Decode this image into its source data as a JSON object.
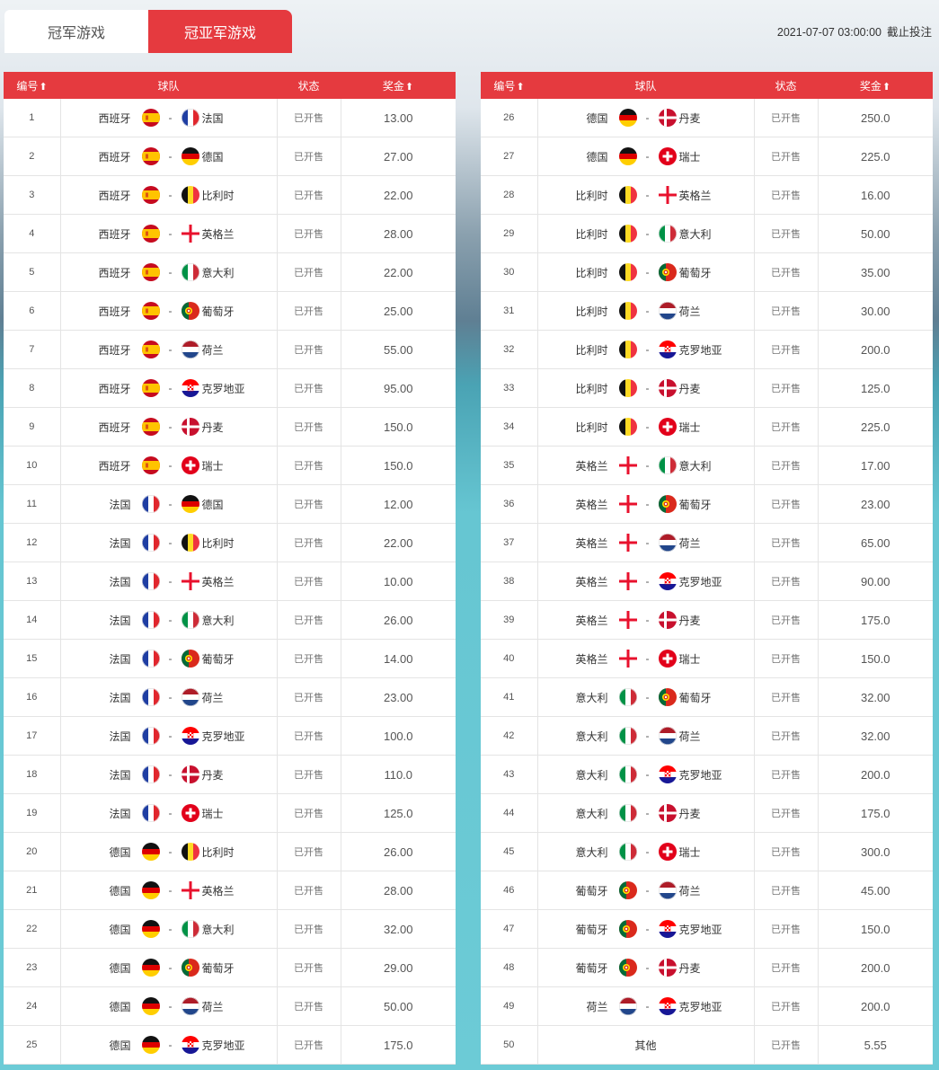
{
  "tabs": [
    {
      "label": "冠军游戏",
      "active": false
    },
    {
      "label": "冠亚军游戏",
      "active": true
    }
  ],
  "deadline": {
    "datetime": "2021-07-07 03:00:00",
    "label": "截止投注"
  },
  "columns": {
    "number": "编号",
    "teams": "球队",
    "status": "状态",
    "prize": "奖金",
    "sort_icon": "⬆"
  },
  "colors": {
    "accent": "#e53a3f",
    "header_text": "#ffffff"
  },
  "rows": [
    {
      "no": "1",
      "team1": "西班牙",
      "flag1": "spain",
      "team2": "法国",
      "flag2": "france",
      "status": "已开售",
      "prize": "13.00"
    },
    {
      "no": "2",
      "team1": "西班牙",
      "flag1": "spain",
      "team2": "德国",
      "flag2": "germany",
      "status": "已开售",
      "prize": "27.00"
    },
    {
      "no": "3",
      "team1": "西班牙",
      "flag1": "spain",
      "team2": "比利时",
      "flag2": "belgium",
      "status": "已开售",
      "prize": "22.00"
    },
    {
      "no": "4",
      "team1": "西班牙",
      "flag1": "spain",
      "team2": "英格兰",
      "flag2": "england",
      "status": "已开售",
      "prize": "28.00"
    },
    {
      "no": "5",
      "team1": "西班牙",
      "flag1": "spain",
      "team2": "意大利",
      "flag2": "italy",
      "status": "已开售",
      "prize": "22.00"
    },
    {
      "no": "6",
      "team1": "西班牙",
      "flag1": "spain",
      "team2": "葡萄牙",
      "flag2": "portugal",
      "status": "已开售",
      "prize": "25.00"
    },
    {
      "no": "7",
      "team1": "西班牙",
      "flag1": "spain",
      "team2": "荷兰",
      "flag2": "netherlands",
      "status": "已开售",
      "prize": "55.00"
    },
    {
      "no": "8",
      "team1": "西班牙",
      "flag1": "spain",
      "team2": "克罗地亚",
      "flag2": "croatia",
      "status": "已开售",
      "prize": "95.00"
    },
    {
      "no": "9",
      "team1": "西班牙",
      "flag1": "spain",
      "team2": "丹麦",
      "flag2": "denmark",
      "status": "已开售",
      "prize": "150.0"
    },
    {
      "no": "10",
      "team1": "西班牙",
      "flag1": "spain",
      "team2": "瑞士",
      "flag2": "switzerland",
      "status": "已开售",
      "prize": "150.0"
    },
    {
      "no": "11",
      "team1": "法国",
      "flag1": "france",
      "team2": "德国",
      "flag2": "germany",
      "status": "已开售",
      "prize": "12.00"
    },
    {
      "no": "12",
      "team1": "法国",
      "flag1": "france",
      "team2": "比利时",
      "flag2": "belgium",
      "status": "已开售",
      "prize": "22.00"
    },
    {
      "no": "13",
      "team1": "法国",
      "flag1": "france",
      "team2": "英格兰",
      "flag2": "england",
      "status": "已开售",
      "prize": "10.00"
    },
    {
      "no": "14",
      "team1": "法国",
      "flag1": "france",
      "team2": "意大利",
      "flag2": "italy",
      "status": "已开售",
      "prize": "26.00"
    },
    {
      "no": "15",
      "team1": "法国",
      "flag1": "france",
      "team2": "葡萄牙",
      "flag2": "portugal",
      "status": "已开售",
      "prize": "14.00"
    },
    {
      "no": "16",
      "team1": "法国",
      "flag1": "france",
      "team2": "荷兰",
      "flag2": "netherlands",
      "status": "已开售",
      "prize": "23.00"
    },
    {
      "no": "17",
      "team1": "法国",
      "flag1": "france",
      "team2": "克罗地亚",
      "flag2": "croatia",
      "status": "已开售",
      "prize": "100.0"
    },
    {
      "no": "18",
      "team1": "法国",
      "flag1": "france",
      "team2": "丹麦",
      "flag2": "denmark",
      "status": "已开售",
      "prize": "110.0"
    },
    {
      "no": "19",
      "team1": "法国",
      "flag1": "france",
      "team2": "瑞士",
      "flag2": "switzerland",
      "status": "已开售",
      "prize": "125.0"
    },
    {
      "no": "20",
      "team1": "德国",
      "flag1": "germany",
      "team2": "比利时",
      "flag2": "belgium",
      "status": "已开售",
      "prize": "26.00"
    },
    {
      "no": "21",
      "team1": "德国",
      "flag1": "germany",
      "team2": "英格兰",
      "flag2": "england",
      "status": "已开售",
      "prize": "28.00"
    },
    {
      "no": "22",
      "team1": "德国",
      "flag1": "germany",
      "team2": "意大利",
      "flag2": "italy",
      "status": "已开售",
      "prize": "32.00"
    },
    {
      "no": "23",
      "team1": "德国",
      "flag1": "germany",
      "team2": "葡萄牙",
      "flag2": "portugal",
      "status": "已开售",
      "prize": "29.00"
    },
    {
      "no": "24",
      "team1": "德国",
      "flag1": "germany",
      "team2": "荷兰",
      "flag2": "netherlands",
      "status": "已开售",
      "prize": "50.00"
    },
    {
      "no": "25",
      "team1": "德国",
      "flag1": "germany",
      "team2": "克罗地亚",
      "flag2": "croatia",
      "status": "已开售",
      "prize": "175.0"
    },
    {
      "no": "26",
      "team1": "德国",
      "flag1": "germany",
      "team2": "丹麦",
      "flag2": "denmark",
      "status": "已开售",
      "prize": "250.0"
    },
    {
      "no": "27",
      "team1": "德国",
      "flag1": "germany",
      "team2": "瑞士",
      "flag2": "switzerland",
      "status": "已开售",
      "prize": "225.0"
    },
    {
      "no": "28",
      "team1": "比利时",
      "flag1": "belgium",
      "team2": "英格兰",
      "flag2": "england",
      "status": "已开售",
      "prize": "16.00"
    },
    {
      "no": "29",
      "team1": "比利时",
      "flag1": "belgium",
      "team2": "意大利",
      "flag2": "italy",
      "status": "已开售",
      "prize": "50.00"
    },
    {
      "no": "30",
      "team1": "比利时",
      "flag1": "belgium",
      "team2": "葡萄牙",
      "flag2": "portugal",
      "status": "已开售",
      "prize": "35.00"
    },
    {
      "no": "31",
      "team1": "比利时",
      "flag1": "belgium",
      "team2": "荷兰",
      "flag2": "netherlands",
      "status": "已开售",
      "prize": "30.00"
    },
    {
      "no": "32",
      "team1": "比利时",
      "flag1": "belgium",
      "team2": "克罗地亚",
      "flag2": "croatia",
      "status": "已开售",
      "prize": "200.0"
    },
    {
      "no": "33",
      "team1": "比利时",
      "flag1": "belgium",
      "team2": "丹麦",
      "flag2": "denmark",
      "status": "已开售",
      "prize": "125.0"
    },
    {
      "no": "34",
      "team1": "比利时",
      "flag1": "belgium",
      "team2": "瑞士",
      "flag2": "switzerland",
      "status": "已开售",
      "prize": "225.0"
    },
    {
      "no": "35",
      "team1": "英格兰",
      "flag1": "england",
      "team2": "意大利",
      "flag2": "italy",
      "status": "已开售",
      "prize": "17.00"
    },
    {
      "no": "36",
      "team1": "英格兰",
      "flag1": "england",
      "team2": "葡萄牙",
      "flag2": "portugal",
      "status": "已开售",
      "prize": "23.00"
    },
    {
      "no": "37",
      "team1": "英格兰",
      "flag1": "england",
      "team2": "荷兰",
      "flag2": "netherlands",
      "status": "已开售",
      "prize": "65.00"
    },
    {
      "no": "38",
      "team1": "英格兰",
      "flag1": "england",
      "team2": "克罗地亚",
      "flag2": "croatia",
      "status": "已开售",
      "prize": "90.00"
    },
    {
      "no": "39",
      "team1": "英格兰",
      "flag1": "england",
      "team2": "丹麦",
      "flag2": "denmark",
      "status": "已开售",
      "prize": "175.0"
    },
    {
      "no": "40",
      "team1": "英格兰",
      "flag1": "england",
      "team2": "瑞士",
      "flag2": "switzerland",
      "status": "已开售",
      "prize": "150.0"
    },
    {
      "no": "41",
      "team1": "意大利",
      "flag1": "italy",
      "team2": "葡萄牙",
      "flag2": "portugal",
      "status": "已开售",
      "prize": "32.00"
    },
    {
      "no": "42",
      "team1": "意大利",
      "flag1": "italy",
      "team2": "荷兰",
      "flag2": "netherlands",
      "status": "已开售",
      "prize": "32.00"
    },
    {
      "no": "43",
      "team1": "意大利",
      "flag1": "italy",
      "team2": "克罗地亚",
      "flag2": "croatia",
      "status": "已开售",
      "prize": "200.0"
    },
    {
      "no": "44",
      "team1": "意大利",
      "flag1": "italy",
      "team2": "丹麦",
      "flag2": "denmark",
      "status": "已开售",
      "prize": "175.0"
    },
    {
      "no": "45",
      "team1": "意大利",
      "flag1": "italy",
      "team2": "瑞士",
      "flag2": "switzerland",
      "status": "已开售",
      "prize": "300.0"
    },
    {
      "no": "46",
      "team1": "葡萄牙",
      "flag1": "portugal",
      "team2": "荷兰",
      "flag2": "netherlands",
      "status": "已开售",
      "prize": "45.00"
    },
    {
      "no": "47",
      "team1": "葡萄牙",
      "flag1": "portugal",
      "team2": "克罗地亚",
      "flag2": "croatia",
      "status": "已开售",
      "prize": "150.0"
    },
    {
      "no": "48",
      "team1": "葡萄牙",
      "flag1": "portugal",
      "team2": "丹麦",
      "flag2": "denmark",
      "status": "已开售",
      "prize": "200.0"
    },
    {
      "no": "49",
      "team1": "荷兰",
      "flag1": "netherlands",
      "team2": "克罗地亚",
      "flag2": "croatia",
      "status": "已开售",
      "prize": "200.0"
    },
    {
      "no": "50",
      "other": "其他",
      "status": "已开售",
      "prize": "5.55"
    }
  ]
}
